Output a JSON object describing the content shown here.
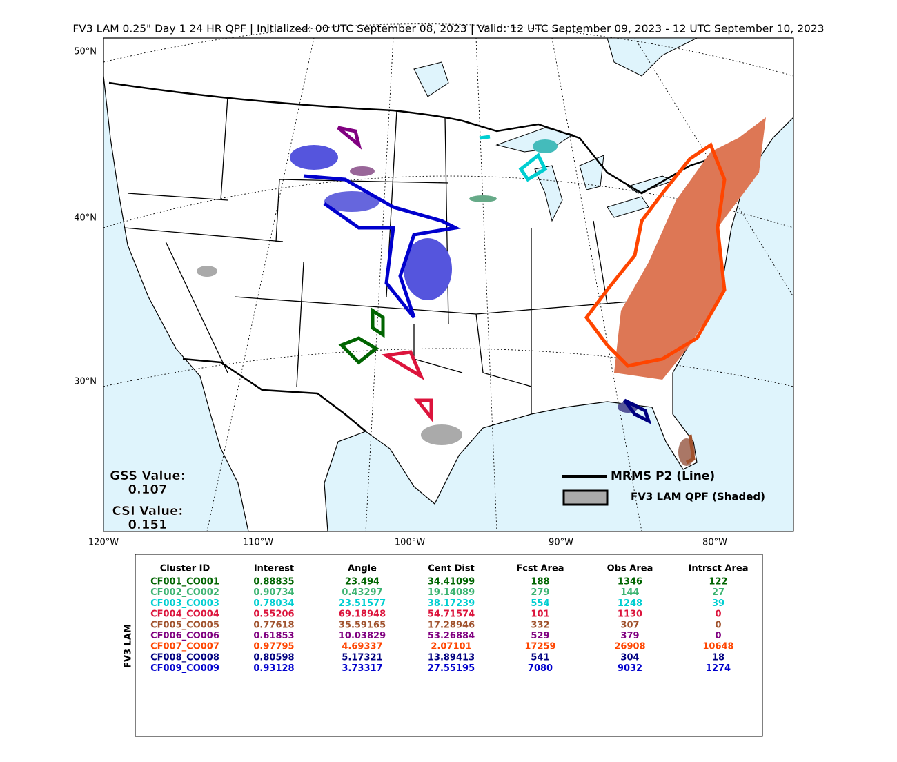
{
  "title": "FV3 LAM 0.25\" Day 1 24 HR QPF | Initialized: 00 UTC September 08, 2023 | Valid: 12 UTC September 09, 2023 - 12 UTC September 10, 2023",
  "map": {
    "lat_labels": [
      "50°N",
      "40°N",
      "30°N"
    ],
    "lon_labels": [
      "120°W",
      "110°W",
      "100°W",
      "90°W",
      "80°W"
    ],
    "gss_label": "GSS Value:",
    "gss_value": 0.107,
    "csi_label": "CSI Value:",
    "csi_value": 0.151,
    "legend": {
      "line_label": "MRMS P2 (Line)",
      "shaded_label": "FV3 LAM QPF (Shaded)"
    }
  },
  "table": {
    "side_label": "FV3 LAM",
    "headers": [
      "Cluster ID",
      "Interest",
      "Angle",
      "Cent Dist",
      "Fcst Area",
      "Obs Area",
      "Intrsct Area"
    ],
    "rows": [
      {
        "color": "#006400",
        "cells": [
          "CF001_CO001",
          0.88835,
          23.494,
          34.41099,
          188,
          1346,
          122
        ]
      },
      {
        "color": "#3cb371",
        "cells": [
          "CF002_CO002",
          0.90734,
          0.43297,
          19.14089,
          279,
          144,
          27
        ]
      },
      {
        "color": "#00ced1",
        "cells": [
          "CF003_CO003",
          0.78034,
          23.51577,
          38.17239,
          554,
          1248,
          39
        ]
      },
      {
        "color": "#dc143c",
        "cells": [
          "CF004_CO004",
          0.55206,
          69.18948,
          54.71574,
          101,
          1130,
          0
        ]
      },
      {
        "color": "#a0522d",
        "cells": [
          "CF005_CO005",
          0.77618,
          35.59165,
          17.28946,
          332,
          307,
          0
        ]
      },
      {
        "color": "#800080",
        "cells": [
          "CF006_CO006",
          0.61853,
          10.03829,
          53.26884,
          529,
          379,
          0
        ]
      },
      {
        "color": "#ff4500",
        "cells": [
          "CF007_CO007",
          0.97795,
          4.69337,
          2.07101,
          17259,
          26908,
          10648
        ]
      },
      {
        "color": "#000080",
        "cells": [
          "CF008_CO008",
          0.80598,
          5.17321,
          13.89413,
          541,
          304,
          18
        ]
      },
      {
        "color": "#0000cd",
        "cells": [
          "CF009_CO009",
          0.93128,
          3.73317,
          27.55195,
          7080,
          9032,
          1274
        ]
      }
    ]
  }
}
